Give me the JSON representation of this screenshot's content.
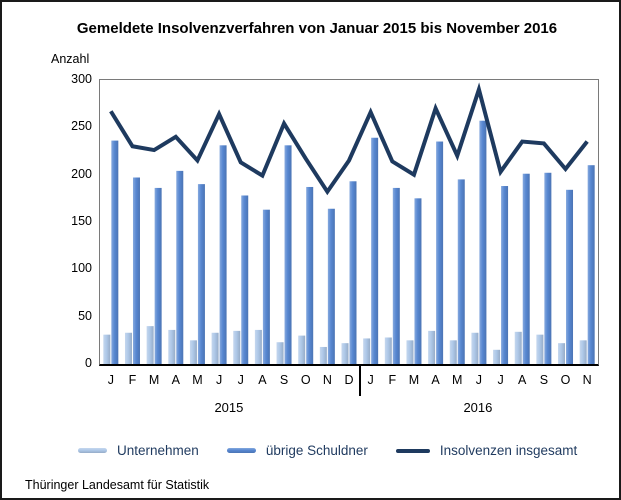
{
  "title": "Gemeldete Insolvenzverfahren von Januar 2015 bis November 2016",
  "y_axis_label": "Anzahl",
  "footer": "Thüringer Landesamt für Statistik",
  "colors": {
    "unternehmen": "#AEC8E8",
    "uebrige_schuldner": "#5787D1",
    "insgesamt_line": "#1E3A5F",
    "axis": "#000000",
    "frame": "#7A7A7A"
  },
  "legend": [
    {
      "label": "Unternehmen",
      "type": "bar",
      "color": "#AEC8E8"
    },
    {
      "label": "übrige Schuldner",
      "type": "bar",
      "color": "#5787D1"
    },
    {
      "label": "Insolvenzen insgesamt",
      "type": "line",
      "color": "#1E3A5F"
    }
  ],
  "chart_data": {
    "type": "bar",
    "title": "Gemeldete Insolvenzverfahren von Januar 2015 bis November 2016",
    "xlabel": "",
    "ylabel": "Anzahl",
    "ylim": [
      0,
      300
    ],
    "ytick_step": 50,
    "grid": false,
    "legend_position": "bottom",
    "categories": [
      "J",
      "F",
      "M",
      "A",
      "M",
      "J",
      "J",
      "A",
      "S",
      "O",
      "N",
      "D",
      "J",
      "F",
      "M",
      "A",
      "M",
      "J",
      "J",
      "A",
      "S",
      "O",
      "N"
    ],
    "year_groups": [
      {
        "label": "2015",
        "months": 12
      },
      {
        "label": "2016",
        "months": 11
      }
    ],
    "series": [
      {
        "name": "Unternehmen",
        "type": "bar",
        "color": "#AEC8E8",
        "values": [
          31,
          33,
          40,
          36,
          25,
          33,
          35,
          36,
          23,
          30,
          18,
          22,
          27,
          28,
          25,
          35,
          25,
          33,
          15,
          34,
          31,
          22,
          25
        ]
      },
      {
        "name": "übrige Schuldner",
        "type": "bar",
        "color": "#5787D1",
        "values": [
          236,
          197,
          186,
          204,
          190,
          231,
          178,
          163,
          231,
          187,
          164,
          193,
          239,
          186,
          175,
          235,
          195,
          257,
          188,
          201,
          202,
          184,
          210
        ]
      },
      {
        "name": "Insolvenzen insgesamt",
        "type": "line",
        "color": "#1E3A5F",
        "values": [
          267,
          230,
          226,
          240,
          215,
          264,
          213,
          199,
          254,
          217,
          182,
          215,
          266,
          214,
          200,
          270,
          220,
          290,
          203,
          235,
          233,
          206,
          235
        ]
      }
    ]
  }
}
